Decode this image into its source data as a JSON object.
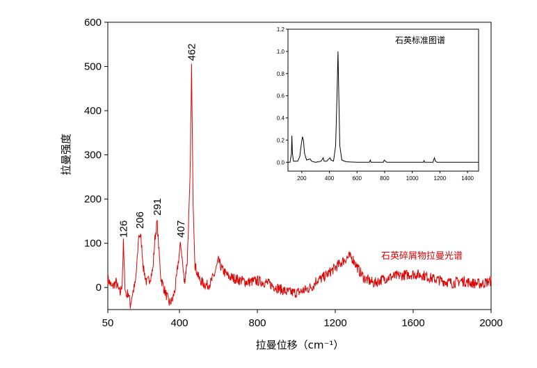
{
  "chart_data": [
    {
      "type": "line",
      "title": "",
      "xlabel": "拉曼位移（cm⁻¹）",
      "ylabel": "拉曼强度",
      "xlim": [
        50,
        2000
      ],
      "ylim": [
        -50,
        600
      ],
      "x_ticks": [
        50,
        400,
        800,
        1200,
        1600,
        2000
      ],
      "y_ticks": [
        0,
        100,
        200,
        300,
        400,
        500,
        600
      ],
      "grid": false,
      "series": [
        {
          "name": "石英碎屑物拉曼光谱",
          "color": "#e00000",
          "baseline": [
            [
              50,
              20
            ],
            [
              70,
              0
            ],
            [
              90,
              12
            ],
            [
              110,
              -15
            ],
            [
              120,
              10
            ],
            [
              126,
              100
            ],
            [
              133,
              10
            ],
            [
              140,
              -20
            ],
            [
              150,
              -10
            ],
            [
              160,
              -40
            ],
            [
              170,
              -15
            ],
            [
              185,
              10
            ],
            [
              195,
              70
            ],
            [
              200,
              115
            ],
            [
              206,
              120
            ],
            [
              212,
              110
            ],
            [
              225,
              40
            ],
            [
              240,
              10
            ],
            [
              255,
              20
            ],
            [
              270,
              40
            ],
            [
              280,
              110
            ],
            [
              291,
              150
            ],
            [
              300,
              80
            ],
            [
              310,
              20
            ],
            [
              330,
              -10
            ],
            [
              350,
              -35
            ],
            [
              365,
              -30
            ],
            [
              380,
              0
            ],
            [
              395,
              60
            ],
            [
              403,
              90
            ],
            [
              407,
              100
            ],
            [
              415,
              60
            ],
            [
              425,
              10
            ],
            [
              440,
              60
            ],
            [
              455,
              250
            ],
            [
              462,
              500
            ],
            [
              470,
              200
            ],
            [
              480,
              50
            ],
            [
              500,
              20
            ],
            [
              520,
              10
            ],
            [
              540,
              5
            ],
            [
              560,
              10
            ],
            [
              580,
              30
            ],
            [
              600,
              60
            ],
            [
              620,
              40
            ],
            [
              650,
              25
            ],
            [
              700,
              18
            ],
            [
              750,
              12
            ],
            [
              800,
              15
            ],
            [
              850,
              10
            ],
            [
              900,
              0
            ],
            [
              950,
              -10
            ],
            [
              1000,
              -12
            ],
            [
              1050,
              -5
            ],
            [
              1090,
              5
            ],
            [
              1100,
              15
            ],
            [
              1130,
              20
            ],
            [
              1160,
              30
            ],
            [
              1200,
              45
            ],
            [
              1240,
              60
            ],
            [
              1270,
              70
            ],
            [
              1290,
              65
            ],
            [
              1320,
              40
            ],
            [
              1350,
              20
            ],
            [
              1400,
              10
            ],
            [
              1450,
              20
            ],
            [
              1500,
              25
            ],
            [
              1550,
              28
            ],
            [
              1600,
              30
            ],
            [
              1650,
              28
            ],
            [
              1700,
              20
            ],
            [
              1750,
              15
            ],
            [
              1800,
              10
            ],
            [
              1850,
              15
            ],
            [
              1900,
              10
            ],
            [
              1950,
              8
            ],
            [
              2000,
              15
            ]
          ]
        }
      ],
      "annotations": [
        {
          "text": "126",
          "x": 126,
          "y": 100
        },
        {
          "text": "206",
          "x": 206,
          "y": 120
        },
        {
          "text": "291",
          "x": 291,
          "y": 150
        },
        {
          "text": "407",
          "x": 407,
          "y": 100
        },
        {
          "text": "462",
          "x": 462,
          "y": 500
        }
      ]
    },
    {
      "type": "line",
      "title": "石英标准图谱",
      "xlim": [
        100,
        1480
      ],
      "ylim": [
        -0.08,
        1.2
      ],
      "x_ticks": [
        200,
        400,
        600,
        800,
        1000,
        1200,
        1400
      ],
      "x_tick_labels": [
        "200",
        "400",
        "600",
        "800",
        "1000",
        "1200",
        "1400"
      ],
      "y_ticks": [
        0.0,
        0.2,
        0.4,
        0.6,
        0.8,
        1.0,
        1.2
      ],
      "y_tick_labels": [
        "0.0",
        "0.2",
        "0.4",
        "0.6",
        "0.8",
        "1.0",
        "1.2"
      ],
      "series": [
        {
          "color": "#000000",
          "points": [
            [
              100,
              0.0
            ],
            [
              115,
              0.0
            ],
            [
              125,
              0.08
            ],
            [
              128,
              0.24
            ],
            [
              132,
              0.08
            ],
            [
              140,
              0.01
            ],
            [
              170,
              0.01
            ],
            [
              185,
              0.05
            ],
            [
              195,
              0.15
            ],
            [
              205,
              0.23
            ],
            [
              212,
              0.2
            ],
            [
              220,
              0.08
            ],
            [
              235,
              0.02
            ],
            [
              260,
              0.03
            ],
            [
              270,
              0.01
            ],
            [
              300,
              0.0
            ],
            [
              340,
              0.01
            ],
            [
              355,
              0.04
            ],
            [
              362,
              0.01
            ],
            [
              380,
              0.01
            ],
            [
              395,
              0.03
            ],
            [
              405,
              0.04
            ],
            [
              412,
              0.02
            ],
            [
              430,
              0.01
            ],
            [
              445,
              0.15
            ],
            [
              455,
              0.6
            ],
            [
              462,
              1.0
            ],
            [
              468,
              0.6
            ],
            [
              475,
              0.15
            ],
            [
              490,
              0.02
            ],
            [
              520,
              0.005
            ],
            [
              600,
              0.0
            ],
            [
              690,
              0.0
            ],
            [
              696,
              0.02
            ],
            [
              702,
              0.0
            ],
            [
              790,
              0.0
            ],
            [
              797,
              0.02
            ],
            [
              805,
              0.01
            ],
            [
              815,
              0.0
            ],
            [
              1000,
              0.0
            ],
            [
              1080,
              0.0
            ],
            [
              1085,
              0.015
            ],
            [
              1090,
              0.0
            ],
            [
              1150,
              0.0
            ],
            [
              1160,
              0.04
            ],
            [
              1168,
              0.01
            ],
            [
              1180,
              0.0
            ],
            [
              1400,
              0.0
            ],
            [
              1480,
              0.0
            ]
          ]
        }
      ]
    }
  ]
}
